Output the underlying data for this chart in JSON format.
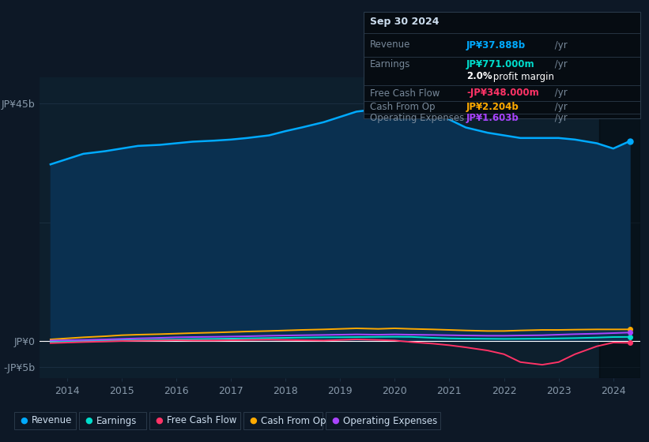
{
  "background_color": "#0d1826",
  "plot_bg_color": "#0d1f2d",
  "grid_color": "#1a2e40",
  "text_color": "#8899aa",
  "ylabel_45b": "JP¥45b",
  "ylabel_0": "JP¥0",
  "ylabel_neg5b": "-JP¥5b",
  "x_labels": [
    "2014",
    "2015",
    "2016",
    "2017",
    "2018",
    "2019",
    "2020",
    "2021",
    "2022",
    "2023",
    "2024"
  ],
  "years": [
    2013.7,
    2014.0,
    2014.3,
    2014.7,
    2015.0,
    2015.3,
    2015.7,
    2016.0,
    2016.3,
    2016.7,
    2017.0,
    2017.3,
    2017.7,
    2018.0,
    2018.3,
    2018.7,
    2019.0,
    2019.3,
    2019.7,
    2020.0,
    2020.3,
    2020.7,
    2021.0,
    2021.3,
    2021.7,
    2022.0,
    2022.3,
    2022.7,
    2023.0,
    2023.3,
    2023.7,
    2024.0,
    2024.3
  ],
  "revenue": [
    33.5,
    34.5,
    35.5,
    36.0,
    36.5,
    37.0,
    37.2,
    37.5,
    37.8,
    38.0,
    38.2,
    38.5,
    39.0,
    39.8,
    40.5,
    41.5,
    42.5,
    43.5,
    44.0,
    44.8,
    45.0,
    44.0,
    42.0,
    40.5,
    39.5,
    39.0,
    38.5,
    38.5,
    38.5,
    38.2,
    37.5,
    36.5,
    37.888
  ],
  "earnings": [
    -0.2,
    -0.1,
    0.0,
    0.1,
    0.15,
    0.2,
    0.25,
    0.3,
    0.35,
    0.4,
    0.45,
    0.5,
    0.55,
    0.6,
    0.65,
    0.7,
    0.72,
    0.75,
    0.78,
    0.8,
    0.78,
    0.6,
    0.5,
    0.45,
    0.42,
    0.4,
    0.42,
    0.45,
    0.5,
    0.55,
    0.65,
    0.75,
    0.771
  ],
  "free_cash_flow": [
    -0.4,
    -0.3,
    -0.2,
    -0.1,
    0.0,
    0.05,
    0.1,
    0.15,
    0.1,
    0.1,
    0.15,
    0.2,
    0.25,
    0.2,
    0.15,
    0.1,
    0.2,
    0.3,
    0.2,
    0.1,
    -0.2,
    -0.5,
    -0.8,
    -1.2,
    -1.8,
    -2.5,
    -4.0,
    -4.5,
    -4.0,
    -2.5,
    -1.0,
    -0.3,
    -0.348
  ],
  "cash_from_op": [
    0.3,
    0.5,
    0.7,
    0.9,
    1.1,
    1.2,
    1.3,
    1.4,
    1.5,
    1.6,
    1.7,
    1.8,
    1.9,
    2.0,
    2.1,
    2.2,
    2.3,
    2.4,
    2.3,
    2.4,
    2.3,
    2.2,
    2.1,
    2.0,
    1.9,
    1.9,
    2.0,
    2.1,
    2.1,
    2.15,
    2.2,
    2.2,
    2.204
  ],
  "operating_expenses": [
    0.1,
    0.15,
    0.2,
    0.3,
    0.4,
    0.5,
    0.6,
    0.7,
    0.75,
    0.8,
    0.85,
    0.9,
    1.0,
    1.05,
    1.1,
    1.15,
    1.2,
    1.25,
    1.2,
    1.25,
    1.2,
    1.15,
    1.1,
    1.05,
    1.0,
    1.0,
    1.05,
    1.1,
    1.2,
    1.3,
    1.4,
    1.5,
    1.603
  ],
  "revenue_color": "#00aaff",
  "earnings_color": "#00ddcc",
  "fcf_color": "#ff3366",
  "cash_from_op_color": "#ffaa00",
  "op_exp_color": "#aa44ff",
  "revenue_fill": "#0a3050",
  "ylim": [
    -7,
    50
  ],
  "xlim": [
    2013.5,
    2024.5
  ],
  "highlight_x_start": 2023.75,
  "highlight_x_end": 2024.5,
  "info_box": {
    "title": "Sep 30 2024",
    "revenue_label": "Revenue",
    "revenue_value": "JP¥37.888b",
    "revenue_unit": " /yr",
    "earnings_label": "Earnings",
    "earnings_value": "JP¥771.000m",
    "earnings_unit": " /yr",
    "profit_margin_bold": "2.0%",
    "profit_margin_text": " profit margin",
    "fcf_label": "Free Cash Flow",
    "fcf_value": "-JP¥348.000m",
    "fcf_unit": " /yr",
    "cash_label": "Cash From Op",
    "cash_value": "JP¥2.204b",
    "cash_unit": " /yr",
    "opex_label": "Operating Expenses",
    "opex_value": "JP¥1.603b",
    "opex_unit": " /yr"
  }
}
